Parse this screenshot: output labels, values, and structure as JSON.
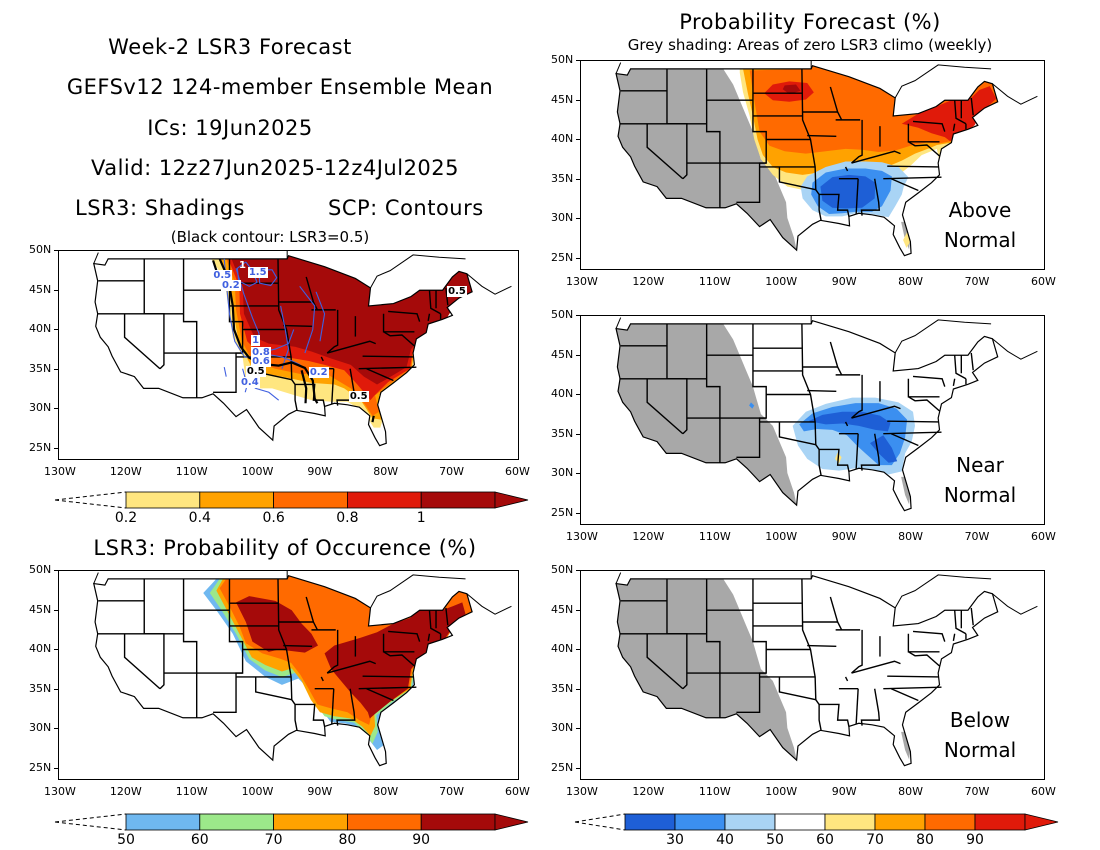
{
  "title_lines": [
    "Week-2 LSR3 Forecast",
    "GEFSv12 124-member Ensemble Mean",
    "ICs: 19Jun2025",
    "Valid: 12z27Jun2025-12z4Jul2025"
  ],
  "shadings_label": "LSR3: Shadings",
  "contours_label": "SCP: Contours",
  "contour_note": "(Black contour: LSR3=0.5)",
  "prob_occ_title": "LSR3: Probability of Occurence (%)",
  "prob_forecast_title": "Probability Forecast (%)",
  "prob_forecast_sub": "Grey shading: Areas of zero LSR3 climo (weekly)",
  "lon_ticks": [
    "130W",
    "120W",
    "110W",
    "100W",
    "90W",
    "80W",
    "70W",
    "60W"
  ],
  "lat_ticks": [
    "50N",
    "45N",
    "40N",
    "35N",
    "30N",
    "25N"
  ],
  "overlays": {
    "above": [
      "Above",
      "Normal"
    ],
    "near": [
      "Near",
      "Normal"
    ],
    "below": [
      "Below",
      "Normal"
    ]
  },
  "contour_labels": [
    "0.5",
    "1",
    "1.5",
    "0.2",
    "1",
    "0.8",
    "0.6",
    "0.5",
    "0.4",
    "0.2",
    "0.5",
    "0.5"
  ],
  "colorbars": {
    "lsr3": {
      "labels": [
        "0.2",
        "0.4",
        "0.6",
        "0.8",
        "1"
      ],
      "colors": [
        "#ffe680",
        "#ffa200",
        "#ff6a00",
        "#e01a0a",
        "#a50a0a"
      ]
    },
    "occurrence": {
      "labels": [
        "50",
        "60",
        "70",
        "80",
        "90"
      ],
      "colors": [
        "#6fb8f0",
        "#9ce88a",
        "#ffa200",
        "#ff6a00",
        "#a50a0a"
      ]
    },
    "forecast": {
      "labels": [
        "30",
        "40",
        "50",
        "60",
        "70",
        "80",
        "90"
      ],
      "colors": [
        "#1e5fd6",
        "#3b8ff0",
        "#a9d4f5",
        "#ffffff",
        "#ffe680",
        "#ffa200",
        "#ff6a00",
        "#e01a0a"
      ]
    }
  },
  "colors": {
    "climo_grey": "#a8a8a8",
    "dark_red": "#a50a0a",
    "red": "#e01a0a",
    "orange_red": "#ff6a00",
    "orange": "#ffa200",
    "yellow": "#ffe680",
    "light_blue": "#a9d4f5",
    "mid_blue": "#3b8ff0",
    "dark_blue": "#1e5fd6",
    "green": "#9ce88a",
    "sky": "#6fb8f0",
    "contour_blue": "#4060e0"
  }
}
